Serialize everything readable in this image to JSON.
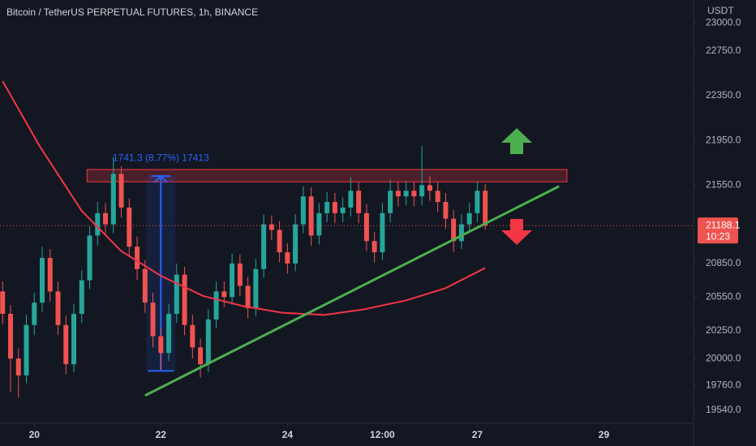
{
  "chart_data": {
    "type": "candlestick",
    "title": "Bitcoin / TetherUS PERPETUAL FUTURES, 1h, BINANCE",
    "y_axis_label": "USDT",
    "up_color": "#26a69a",
    "down_color": "#ef5350",
    "x": [
      -12,
      -9,
      -6,
      -3,
      0,
      3,
      6,
      9,
      12,
      15,
      18,
      21,
      24,
      27,
      30,
      33,
      36,
      39,
      42,
      45,
      48,
      51,
      54,
      57,
      60,
      63,
      66,
      69,
      72,
      75,
      78,
      81,
      84,
      87,
      90,
      93,
      96,
      99,
      102,
      105,
      108,
      111,
      114,
      117,
      120,
      123,
      126,
      129,
      132,
      135,
      138,
      141,
      144,
      147,
      150,
      153,
      156,
      159,
      162,
      165,
      168,
      171
    ],
    "open": [
      20600,
      20400,
      20000,
      19850,
      20300,
      20500,
      20900,
      20600,
      20300,
      19950,
      20400,
      20700,
      21100,
      21300,
      21200,
      21650,
      21350,
      21000,
      20800,
      20500,
      20200,
      20050,
      20400,
      20750,
      20300,
      20100,
      19950,
      20350,
      20600,
      20550,
      20850,
      20650,
      20450,
      20800,
      21200,
      21150,
      20950,
      20850,
      21200,
      21450,
      21100,
      21300,
      21400,
      21300,
      21350,
      21500,
      21300,
      21050,
      20950,
      21300,
      21500,
      21450,
      21500,
      21450,
      21550,
      21500,
      21400,
      21250,
      21050,
      21200,
      21300,
      21500
    ],
    "high": [
      20690,
      20480,
      20090,
      20390,
      20590,
      21000,
      20980,
      20690,
      20380,
      20490,
      20790,
      21180,
      21400,
      21390,
      21800,
      21720,
      21430,
      21090,
      20880,
      20590,
      20280,
      20490,
      20850,
      20820,
      20390,
      20180,
      20440,
      20690,
      20690,
      20940,
      20930,
      20730,
      20890,
      21290,
      21280,
      21230,
      21030,
      21290,
      21540,
      21530,
      21390,
      21490,
      21480,
      21440,
      21620,
      21580,
      21380,
      21130,
      21390,
      21600,
      21580,
      21590,
      21580,
      21900,
      21630,
      21580,
      21480,
      21330,
      21290,
      21390,
      21580,
      21560
    ],
    "low": [
      20310,
      19700,
      19650,
      19780,
      20210,
      20420,
      20510,
      20210,
      19860,
      19880,
      20320,
      20620,
      21010,
      21100,
      21120,
      21260,
      20910,
      20700,
      20410,
      20100,
      19900,
      19980,
      20320,
      20210,
      20000,
      19830,
      19880,
      20270,
      20460,
      20480,
      20560,
      20360,
      20380,
      20720,
      21060,
      20860,
      20760,
      20780,
      21120,
      21010,
      21020,
      21220,
      21210,
      21220,
      21270,
      21210,
      20960,
      20860,
      20880,
      21220,
      21360,
      21370,
      21360,
      21370,
      21410,
      21310,
      21160,
      20950,
      20980,
      21120,
      21220,
      21150
    ],
    "close": [
      20400,
      20000,
      19850,
      20300,
      20500,
      20900,
      20600,
      20300,
      19950,
      20400,
      20700,
      21100,
      21300,
      21200,
      21650,
      21350,
      21000,
      20800,
      20500,
      20200,
      20050,
      20400,
      20750,
      20300,
      20100,
      19950,
      20350,
      20600,
      20550,
      20850,
      20650,
      20450,
      20800,
      21200,
      21150,
      20950,
      20850,
      21200,
      21450,
      21100,
      21300,
      21400,
      21300,
      21350,
      21500,
      21300,
      21050,
      20950,
      21300,
      21500,
      21450,
      21500,
      21450,
      21550,
      21500,
      21400,
      21250,
      21050,
      21200,
      21300,
      21500,
      21188.1
    ],
    "moving_average": {
      "color": "#f23645",
      "x": [
        -12,
        2,
        18,
        33,
        48,
        64,
        79,
        94,
        110,
        125,
        141,
        156,
        171
      ],
      "values": [
        22480,
        21900,
        21320,
        20960,
        20740,
        20560,
        20470,
        20410,
        20390,
        20440,
        20520,
        20630,
        20810
      ]
    },
    "trendline": {
      "color": "#4caf50",
      "x": [
        42,
        199
      ],
      "values": [
        19670,
        21540
      ]
    },
    "resistance_zone": {
      "x": [
        20,
        202
      ],
      "values": [
        21580,
        21690
      ]
    },
    "measure": {
      "label": "1741.3 (8.77%) 17413",
      "x": 48,
      "values": [
        19890,
        21631.3
      ]
    },
    "countdown": "10:23",
    "xlim": [
      -13,
      250
    ],
    "ylim": [
      19400,
      23060
    ],
    "xticks": [
      {
        "value": 0,
        "label": "20"
      },
      {
        "value": 48,
        "label": "22"
      },
      {
        "value": 96,
        "label": "24"
      },
      {
        "value": 132,
        "label": "12:00"
      },
      {
        "value": 168,
        "label": "27"
      },
      {
        "value": 216,
        "label": "29"
      }
    ],
    "yticks": [
      {
        "value": 23000,
        "label": "23000.0"
      },
      {
        "value": 22750,
        "label": "22750.0"
      },
      {
        "value": 22350,
        "label": "22350.0"
      },
      {
        "value": 21950,
        "label": "21950.0"
      },
      {
        "value": 21550,
        "label": "21550.0"
      },
      {
        "value": 20850,
        "label": "20850.0"
      },
      {
        "value": 20550,
        "label": "20550.0"
      },
      {
        "value": 20250,
        "label": "20250.0"
      },
      {
        "value": 20000,
        "label": "20000.0"
      },
      {
        "value": 19760,
        "label": "19760.0"
      },
      {
        "value": 19540,
        "label": "19540.0"
      }
    ]
  }
}
